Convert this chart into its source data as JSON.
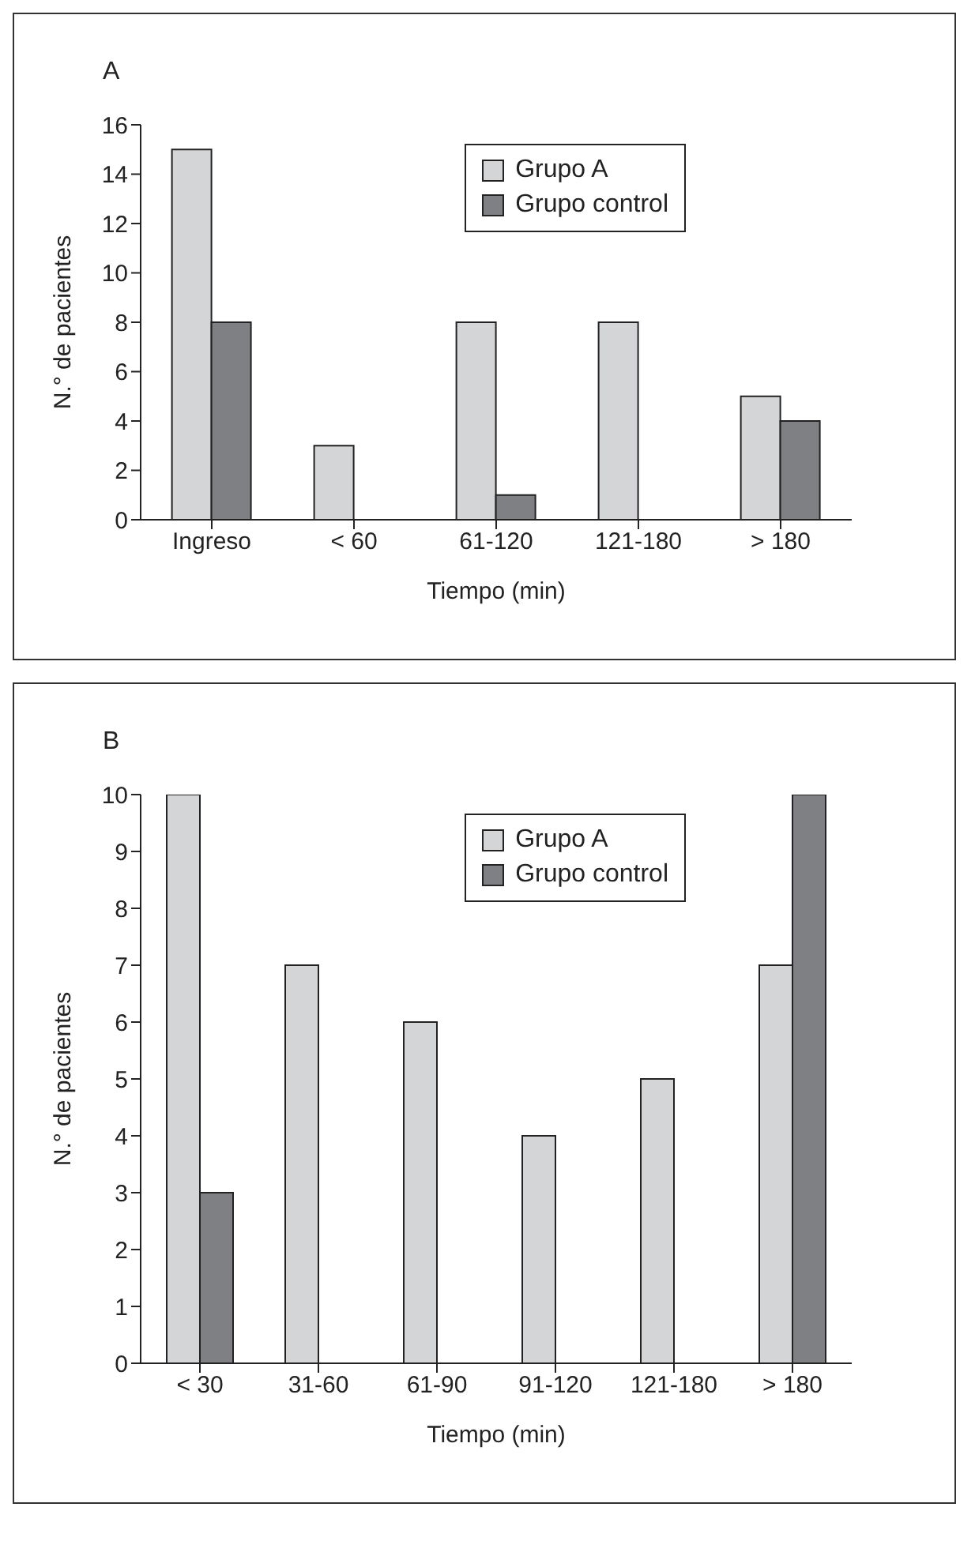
{
  "chart_data": [
    {
      "type": "bar",
      "title": "A",
      "xlabel": "Tiempo (min)",
      "ylabel": "N.° de pacientes",
      "categories": [
        "Ingreso",
        "< 60",
        "61-120",
        "121-180",
        "> 180"
      ],
      "series": [
        {
          "name": "Grupo A",
          "color": "#d4d5d7",
          "values": [
            15,
            3,
            8,
            8,
            5
          ]
        },
        {
          "name": "Grupo control",
          "color": "#7f8084",
          "values": [
            8,
            0,
            1,
            0,
            4
          ]
        }
      ],
      "ylim": [
        0,
        16
      ],
      "yticks": [
        0,
        2,
        4,
        6,
        8,
        10,
        12,
        14,
        16
      ],
      "grid": false,
      "legend": "top right"
    },
    {
      "type": "bar",
      "title": "B",
      "xlabel": "Tiempo (min)",
      "ylabel": "N.° de pacientes",
      "categories": [
        "< 30",
        "31-60",
        "61-90",
        "91-120",
        "121-180",
        "> 180"
      ],
      "series": [
        {
          "name": "Grupo A",
          "color": "#d4d5d7",
          "values": [
            10,
            7,
            6,
            4,
            5,
            7
          ]
        },
        {
          "name": "Grupo control",
          "color": "#7f8084",
          "values": [
            3,
            0,
            0,
            0,
            0,
            10
          ]
        }
      ],
      "ylim": [
        0,
        10
      ],
      "yticks": [
        0,
        1,
        2,
        3,
        4,
        5,
        6,
        7,
        8,
        9,
        10
      ],
      "grid": false,
      "legend": "top right"
    }
  ]
}
